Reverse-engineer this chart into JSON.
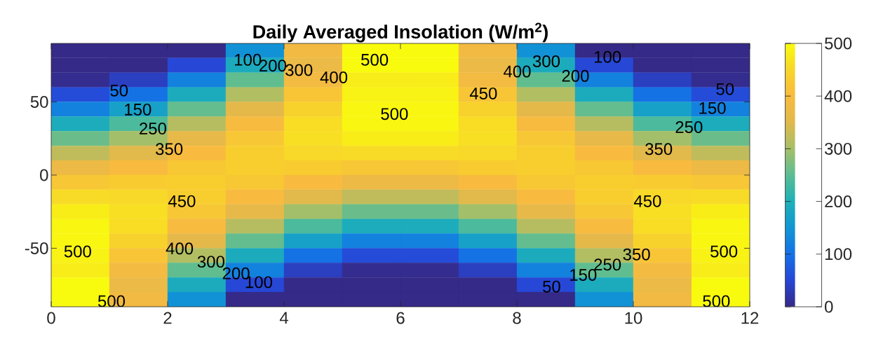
{
  "chart_data": {
    "type": "heatmap",
    "title": "Daily Averaged Insolation (W/m$^{2}$)",
    "x": [
      0.5,
      1.5,
      2.5,
      3.5,
      4.5,
      5.5,
      6.5,
      7.5,
      8.5,
      9.5,
      10.5,
      11.5
    ],
    "xlim": [
      0,
      12
    ],
    "xticks": [
      0,
      2,
      4,
      6,
      8,
      10,
      12
    ],
    "ylim": [
      -90,
      90
    ],
    "yticks": [
      -50,
      0,
      50
    ],
    "clim": [
      0,
      500
    ],
    "cticks": [
      0,
      100,
      200,
      300,
      400,
      500
    ],
    "cells": [
      [
        0,
        0,
        0,
        145,
        387,
        523,
        523,
        387,
        145,
        0,
        0,
        0
      ],
      [
        0,
        0,
        51,
        191,
        375,
        507,
        507,
        375,
        191,
        51,
        0,
        0
      ],
      [
        5,
        37,
        122,
        253,
        389,
        481,
        481,
        389,
        253,
        122,
        37,
        5
      ],
      [
        57,
        102,
        191,
        310,
        420,
        488,
        488,
        420,
        310,
        191,
        102,
        57
      ],
      [
        123,
        171,
        256,
        359,
        445,
        495,
        495,
        445,
        359,
        256,
        171,
        123
      ],
      [
        193,
        238,
        314,
        397,
        460,
        494,
        494,
        460,
        397,
        314,
        238,
        193
      ],
      [
        260,
        299,
        362,
        423,
        463,
        482,
        482,
        463,
        423,
        362,
        299,
        260
      ],
      [
        322,
        354,
        399,
        437,
        454,
        458,
        458,
        454,
        437,
        399,
        354,
        322
      ],
      [
        377,
        399,
        425,
        437,
        433,
        423,
        423,
        433,
        437,
        425,
        399,
        377
      ],
      [
        423,
        433,
        437,
        425,
        399,
        377,
        377,
        399,
        425,
        437,
        433,
        423
      ],
      [
        458,
        454,
        437,
        399,
        354,
        322,
        322,
        354,
        399,
        437,
        454,
        458
      ],
      [
        482,
        463,
        423,
        362,
        299,
        260,
        260,
        299,
        362,
        423,
        463,
        482
      ],
      [
        494,
        460,
        397,
        314,
        238,
        193,
        193,
        238,
        314,
        397,
        460,
        494
      ],
      [
        495,
        445,
        359,
        256,
        171,
        123,
        123,
        171,
        256,
        359,
        445,
        495
      ],
      [
        488,
        420,
        310,
        191,
        102,
        57,
        57,
        102,
        191,
        310,
        420,
        488
      ],
      [
        481,
        389,
        253,
        122,
        37,
        5,
        5,
        37,
        122,
        253,
        389,
        481
      ],
      [
        507,
        375,
        191,
        51,
        0,
        0,
        0,
        0,
        51,
        191,
        375,
        507
      ],
      [
        523,
        387,
        145,
        0,
        0,
        0,
        0,
        0,
        0,
        145,
        387,
        523
      ]
    ],
    "annotations": [
      "100",
      "200",
      "300",
      "400",
      "500",
      "50",
      "150",
      "250",
      "350",
      "500",
      "450",
      "400",
      "300",
      "200",
      "100",
      "50",
      "150",
      "250",
      "350",
      "450",
      "450",
      "500",
      "500",
      "400",
      "300",
      "200",
      "100",
      "500",
      "500",
      "50",
      "150",
      "250",
      "350"
    ]
  }
}
